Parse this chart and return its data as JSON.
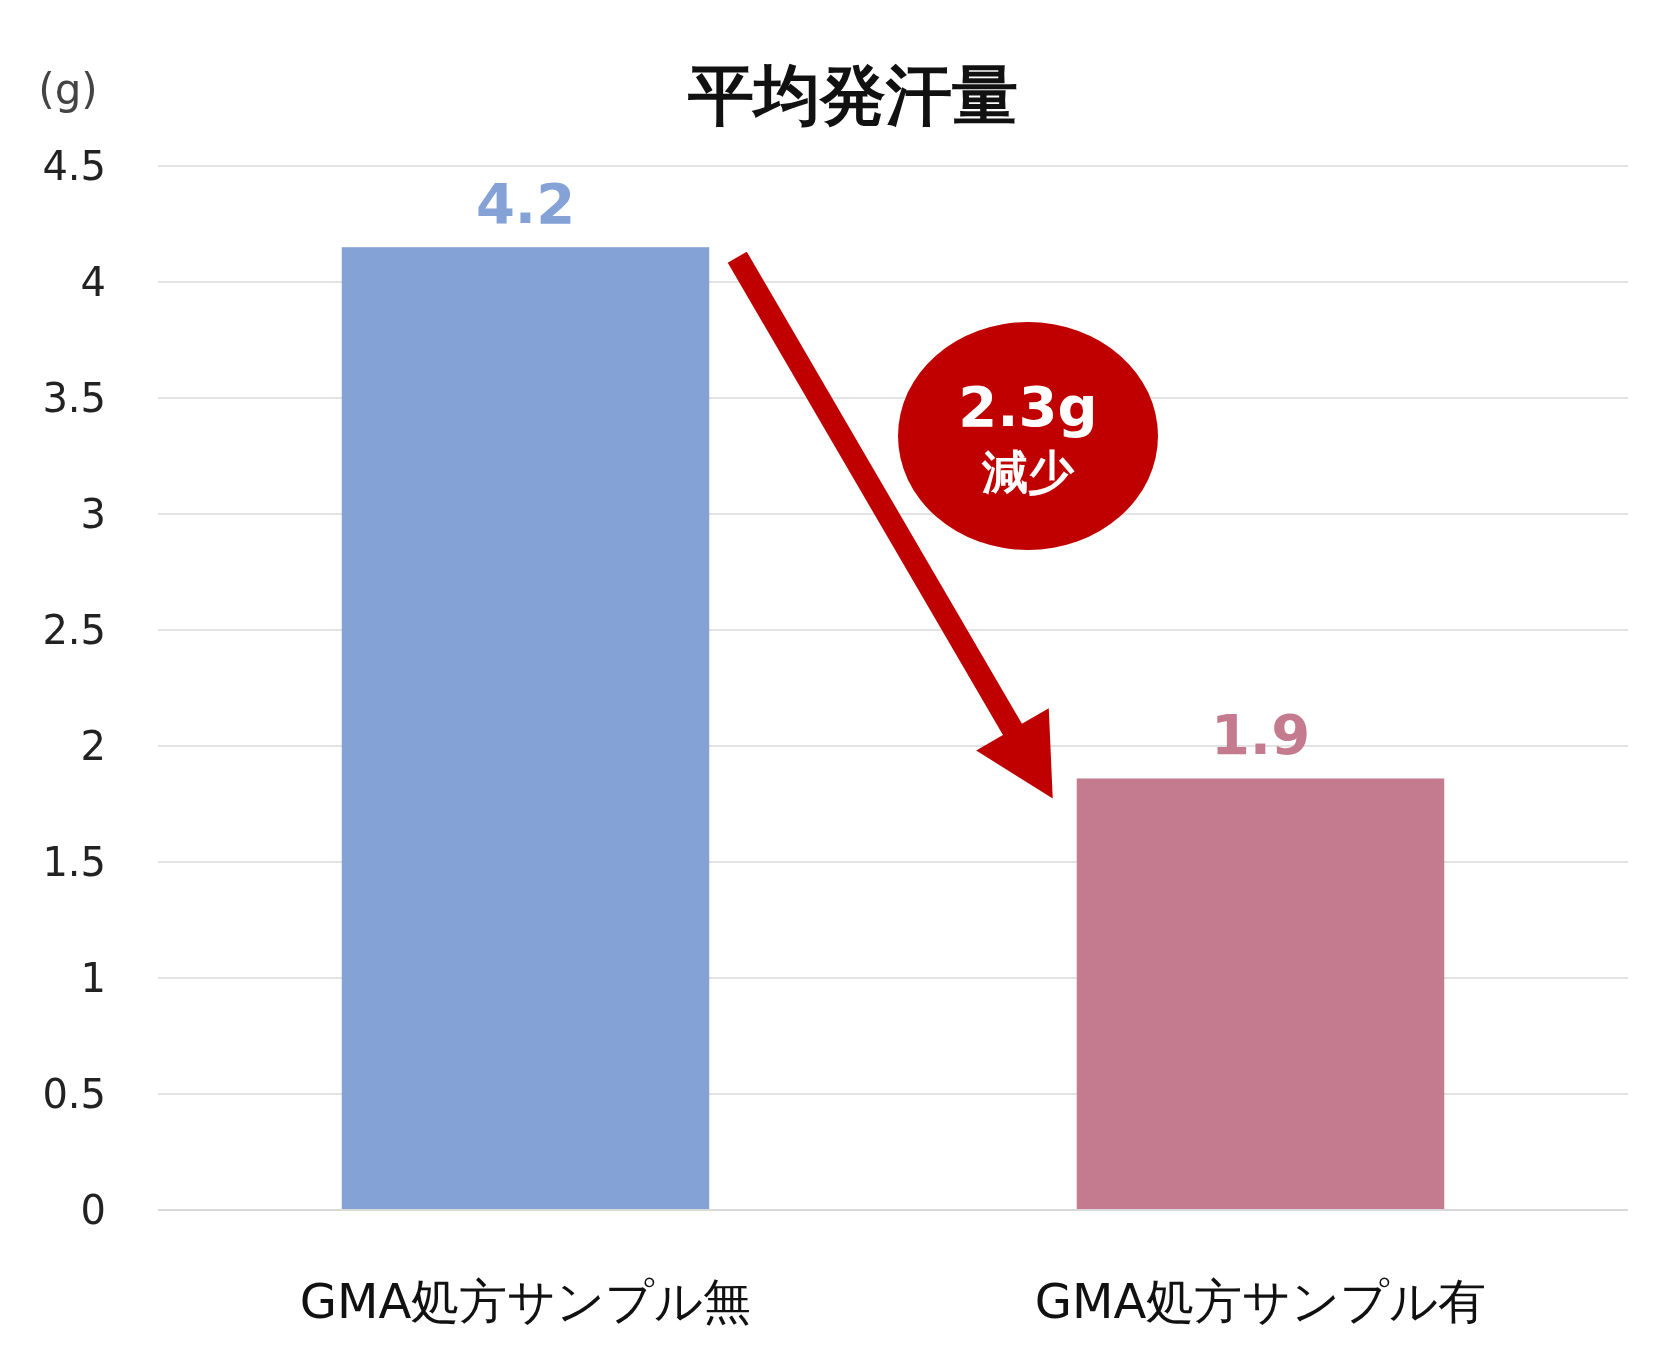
{
  "chart_data": {
    "type": "bar",
    "title": "平均発汗量",
    "ylabel": "(g)",
    "categories": [
      "GMA処方サンプル無",
      "GMA処方サンプル有"
    ],
    "values": [
      4.15,
      1.86
    ],
    "colors": [
      "#84a2d6",
      "#c47b8f"
    ],
    "value_labels": [
      "4.2",
      "1.9"
    ],
    "ylim": [
      0,
      4.5
    ],
    "yticks": [
      0,
      0.5,
      1,
      1.5,
      2,
      2.5,
      3,
      3.5,
      4,
      4.5
    ],
    "grid": "y",
    "annotations": [
      "2.3g\n減少"
    ]
  }
}
